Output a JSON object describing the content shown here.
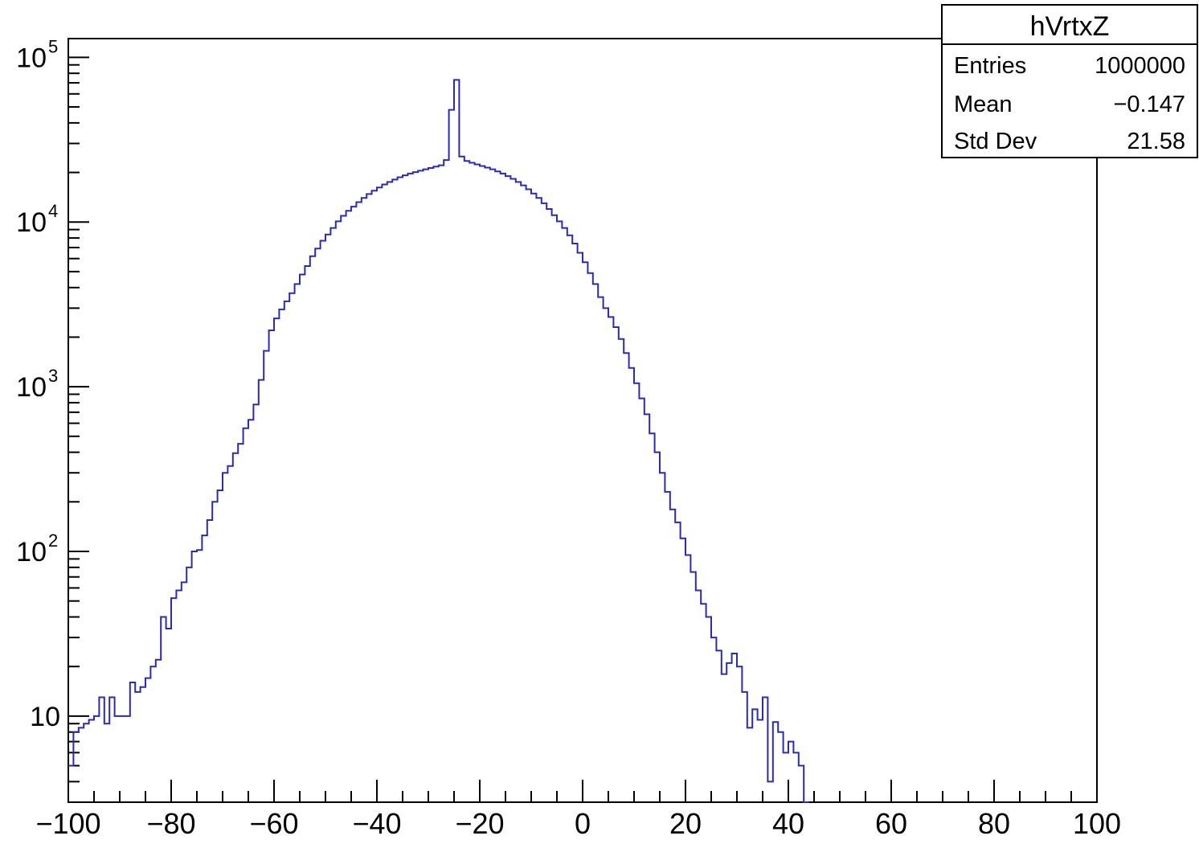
{
  "chart_data": {
    "type": "histogram",
    "title": "hVrtxZ",
    "xlabel": "",
    "ylabel": "",
    "xlim": [
      -100,
      100
    ],
    "ylim": [
      3,
      130000
    ],
    "y_scale": "log",
    "grid": false,
    "legend": "none",
    "line_color": "#2b2bb0",
    "x_tick_labels": [
      "−100",
      "−80",
      "−60",
      "−40",
      "−20",
      "0",
      "20",
      "40",
      "60",
      "80",
      "100"
    ],
    "y_tick_labels": [
      {
        "base": "10",
        "exp": "5"
      },
      {
        "base": "10",
        "exp": "4"
      },
      {
        "base": "10",
        "exp": "3"
      },
      {
        "base": "10",
        "exp": "2"
      },
      {
        "base": "10",
        "exp": ""
      }
    ],
    "stats_box": {
      "title": "hVrtxZ",
      "rows": [
        {
          "label": "Entries",
          "value": "1000000"
        },
        {
          "label": "Mean",
          "value": "−0.147"
        },
        {
          "label": "Std Dev",
          "value": "21.58"
        }
      ]
    },
    "bin_edges_start": -100,
    "bin_width": 1,
    "values": [
      5,
      8,
      8.5,
      9,
      9.5,
      10,
      13,
      9,
      13,
      10,
      10,
      10,
      16,
      14,
      15,
      17,
      20,
      22,
      40,
      34,
      52,
      58,
      65,
      80,
      100,
      102,
      125,
      155,
      200,
      235,
      300,
      330,
      395,
      450,
      560,
      630,
      780,
      1100,
      1650,
      2200,
      2600,
      2950,
      3300,
      3700,
      4200,
      4800,
      5400,
      6200,
      6900,
      7700,
      8400,
      9200,
      10100,
      10900,
      11700,
      12400,
      13200,
      14000,
      14800,
      15500,
      16200,
      16900,
      17500,
      18100,
      18700,
      19200,
      19700,
      20100,
      20500,
      20900,
      21300,
      21700,
      22100,
      23800,
      48000,
      73000,
      25000,
      23500,
      22900,
      22400,
      21900,
      21400,
      20900,
      20300,
      19700,
      19000,
      18300,
      17500,
      16700,
      15800,
      14900,
      14000,
      13000,
      12000,
      11000,
      10100,
      9200,
      8300,
      7400,
      6500,
      5700,
      4900,
      4200,
      3500,
      3000,
      2650,
      2300,
      1950,
      1600,
      1300,
      1050,
      850,
      680,
      520,
      400,
      300,
      230,
      180,
      150,
      120,
      95,
      75,
      58,
      48,
      40,
      30,
      25,
      18,
      21,
      24,
      20,
      14,
      8.5,
      11,
      9.5,
      13,
      4,
      9.2,
      8,
      6,
      7,
      6,
      5,
      2.5
    ]
  }
}
